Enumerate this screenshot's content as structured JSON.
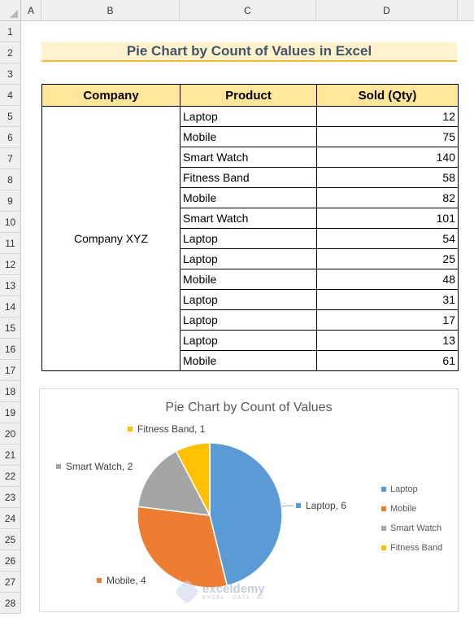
{
  "columns": [
    "A",
    "B",
    "C",
    "D"
  ],
  "rows": [
    "1",
    "2",
    "3",
    "4",
    "5",
    "6",
    "7",
    "8",
    "9",
    "10",
    "11",
    "12",
    "13",
    "14",
    "15",
    "16",
    "17",
    "18",
    "19",
    "20",
    "21",
    "22",
    "23",
    "24",
    "25",
    "26",
    "27",
    "28"
  ],
  "sheet_title": "Pie Chart by Count of Values in Excel",
  "table": {
    "headers": [
      "Company",
      "Product",
      "Sold (Qty)"
    ],
    "company": "Company XYZ",
    "rows": [
      {
        "product": "Laptop",
        "qty": "12"
      },
      {
        "product": "Mobile",
        "qty": "75"
      },
      {
        "product": "Smart Watch",
        "qty": "140"
      },
      {
        "product": "Fitness Band",
        "qty": "58"
      },
      {
        "product": "Mobile",
        "qty": "82"
      },
      {
        "product": "Smart Watch",
        "qty": "101"
      },
      {
        "product": "Laptop",
        "qty": "54"
      },
      {
        "product": "Laptop",
        "qty": "25"
      },
      {
        "product": "Mobile",
        "qty": "48"
      },
      {
        "product": "Laptop",
        "qty": "31"
      },
      {
        "product": "Laptop",
        "qty": "17"
      },
      {
        "product": "Laptop",
        "qty": "13"
      },
      {
        "product": "Mobile",
        "qty": "61"
      }
    ]
  },
  "chart_data": {
    "type": "pie",
    "title": "Pie Chart by Count of Values",
    "categories": [
      "Laptop",
      "Mobile",
      "Smart Watch",
      "Fitness Band"
    ],
    "values": [
      6,
      4,
      2,
      1
    ],
    "colors": [
      "#5b9bd5",
      "#ed7d31",
      "#a5a5a5",
      "#ffc000"
    ],
    "data_labels": [
      "Laptop, 6",
      "Mobile, 4",
      "Smart Watch, 2",
      "Fitness Band, 1"
    ],
    "legend_position": "right"
  },
  "watermark": {
    "name": "exceldemy",
    "tagline": "EXCEL · DATA · BI"
  }
}
